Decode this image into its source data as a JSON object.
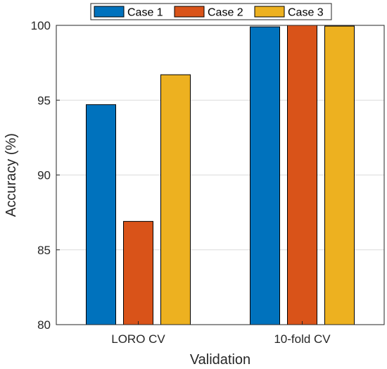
{
  "chart_data": {
    "type": "bar",
    "categories": [
      "LORO CV",
      "10-fold CV"
    ],
    "series": [
      {
        "name": "Case 1",
        "color": "#0072BD",
        "values": [
          94.7,
          99.9
        ]
      },
      {
        "name": "Case 2",
        "color": "#D95319",
        "values": [
          86.9,
          100.0
        ]
      },
      {
        "name": "Case 3",
        "color": "#EDB120",
        "values": [
          96.7,
          99.95
        ]
      }
    ],
    "xlabel": "Validation",
    "ylabel": "Accuracy (%)",
    "ylim": [
      80,
      100
    ],
    "yticks": [
      "80",
      "85",
      "90",
      "95",
      "100"
    ],
    "grid": true,
    "legend_position": "top, horizontal"
  }
}
